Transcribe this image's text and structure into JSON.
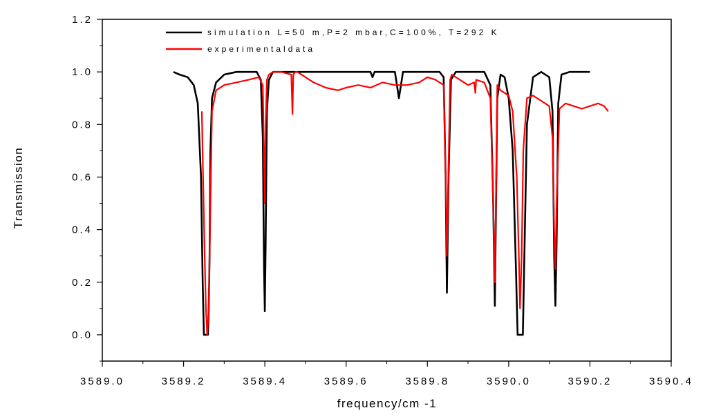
{
  "chart_data": {
    "type": "line",
    "title": "",
    "xlabel": "frequency/cm -1",
    "ylabel": "Transmission",
    "xlim": [
      3589.0,
      3590.4
    ],
    "ylim": [
      -0.1,
      1.2
    ],
    "x_ticks": [
      3589.0,
      3589.2,
      3589.4,
      3589.6,
      3589.8,
      3590.0,
      3590.2,
      3590.4
    ],
    "x_tick_labels": [
      "3589.0",
      "3589.2",
      "3589.4",
      "3589.6",
      "3589.8",
      "3590.0",
      "3590.2",
      "3590.4"
    ],
    "y_ticks": [
      0.0,
      0.2,
      0.4,
      0.6,
      0.8,
      1.0,
      1.2
    ],
    "y_tick_labels": [
      "0.0",
      "0.2",
      "0.4",
      "0.6",
      "0.8",
      "1.0",
      "1.2"
    ],
    "grid": false,
    "legend_position": "top",
    "series": [
      {
        "name": "simulation L=50 m,P=2 mbar,C=100%, T=292 K",
        "color": "#000000",
        "x": [
          3589.175,
          3589.19,
          3589.21,
          3589.225,
          3589.235,
          3589.243,
          3589.247,
          3589.25,
          3589.252,
          3589.26,
          3589.262,
          3589.264,
          3589.266,
          3589.27,
          3589.28,
          3589.3,
          3589.33,
          3589.36,
          3589.38,
          3589.39,
          3589.395,
          3589.398,
          3589.4,
          3589.402,
          3589.405,
          3589.41,
          3589.42,
          3589.5,
          3589.6,
          3589.66,
          3589.665,
          3589.67,
          3589.69,
          3589.72,
          3589.73,
          3589.74,
          3589.8,
          3589.83,
          3589.84,
          3589.845,
          3589.848,
          3589.852,
          3589.858,
          3589.87,
          3589.9,
          3589.94,
          3589.955,
          3589.962,
          3589.966,
          3589.969,
          3589.972,
          3589.98,
          3589.99,
          3590.0,
          3590.01,
          3590.018,
          3590.022,
          3590.024,
          3590.035,
          3590.038,
          3590.045,
          3590.06,
          3590.08,
          3590.1,
          3590.108,
          3590.112,
          3590.115,
          3590.118,
          3590.122,
          3590.13,
          3590.15,
          3590.2
        ],
        "y": [
          1.0,
          0.99,
          0.98,
          0.95,
          0.88,
          0.6,
          0.2,
          0.0,
          0.0,
          0.0,
          0.1,
          0.3,
          0.7,
          0.9,
          0.96,
          0.99,
          1.0,
          1.0,
          1.0,
          0.97,
          0.75,
          0.25,
          0.09,
          0.35,
          0.85,
          0.97,
          1.0,
          1.0,
          1.0,
          1.0,
          0.98,
          1.0,
          1.0,
          1.0,
          0.9,
          1.0,
          1.0,
          1.0,
          0.98,
          0.6,
          0.16,
          0.6,
          0.97,
          1.0,
          1.0,
          1.0,
          0.95,
          0.5,
          0.11,
          0.5,
          0.9,
          0.99,
          0.98,
          0.9,
          0.7,
          0.25,
          0.0,
          0.0,
          0.0,
          0.25,
          0.8,
          0.98,
          1.0,
          0.98,
          0.85,
          0.3,
          0.11,
          0.35,
          0.88,
          0.99,
          1.0,
          1.0
        ]
      },
      {
        "name": "experimentaldata",
        "color": "#ff0000",
        "x": [
          3589.245,
          3589.248,
          3589.252,
          3589.255,
          3589.258,
          3589.262,
          3589.266,
          3589.27,
          3589.28,
          3589.3,
          3589.33,
          3589.36,
          3589.385,
          3589.395,
          3589.4,
          3589.402,
          3589.405,
          3589.41,
          3589.42,
          3589.44,
          3589.465,
          3589.468,
          3589.47,
          3589.475,
          3589.48,
          3589.5,
          3589.52,
          3589.55,
          3589.58,
          3589.6,
          3589.63,
          3589.66,
          3589.69,
          3589.72,
          3589.75,
          3589.78,
          3589.8,
          3589.82,
          3589.84,
          3589.845,
          3589.848,
          3589.852,
          3589.856,
          3589.86,
          3589.88,
          3589.9,
          3589.915,
          3589.918,
          3589.92,
          3589.94,
          3589.955,
          3589.962,
          3589.966,
          3589.969,
          3589.972,
          3589.98,
          3590.0,
          3590.01,
          3590.02,
          3590.025,
          3590.028,
          3590.032,
          3590.036,
          3590.045,
          3590.06,
          3590.08,
          3590.1,
          3590.108,
          3590.112,
          3590.115,
          3590.118,
          3590.125,
          3590.14,
          3590.16,
          3590.18,
          3590.2,
          3590.22,
          3590.235,
          3590.245
        ],
        "y": [
          0.85,
          0.6,
          0.3,
          0.1,
          0.0,
          0.1,
          0.5,
          0.85,
          0.93,
          0.95,
          0.96,
          0.97,
          0.98,
          0.95,
          0.5,
          0.8,
          0.97,
          0.99,
          1.0,
          1.0,
          0.99,
          0.84,
          0.99,
          1.0,
          1.0,
          0.98,
          0.96,
          0.94,
          0.93,
          0.94,
          0.95,
          0.94,
          0.96,
          0.95,
          0.95,
          0.96,
          0.98,
          0.97,
          0.95,
          0.6,
          0.3,
          0.65,
          0.97,
          0.99,
          0.97,
          0.95,
          0.96,
          0.92,
          0.97,
          0.96,
          0.9,
          0.5,
          0.2,
          0.55,
          0.95,
          0.93,
          0.91,
          0.85,
          0.6,
          0.3,
          0.1,
          0.3,
          0.7,
          0.9,
          0.91,
          0.89,
          0.87,
          0.75,
          0.4,
          0.25,
          0.5,
          0.86,
          0.88,
          0.87,
          0.86,
          0.87,
          0.88,
          0.87,
          0.85
        ]
      }
    ]
  }
}
